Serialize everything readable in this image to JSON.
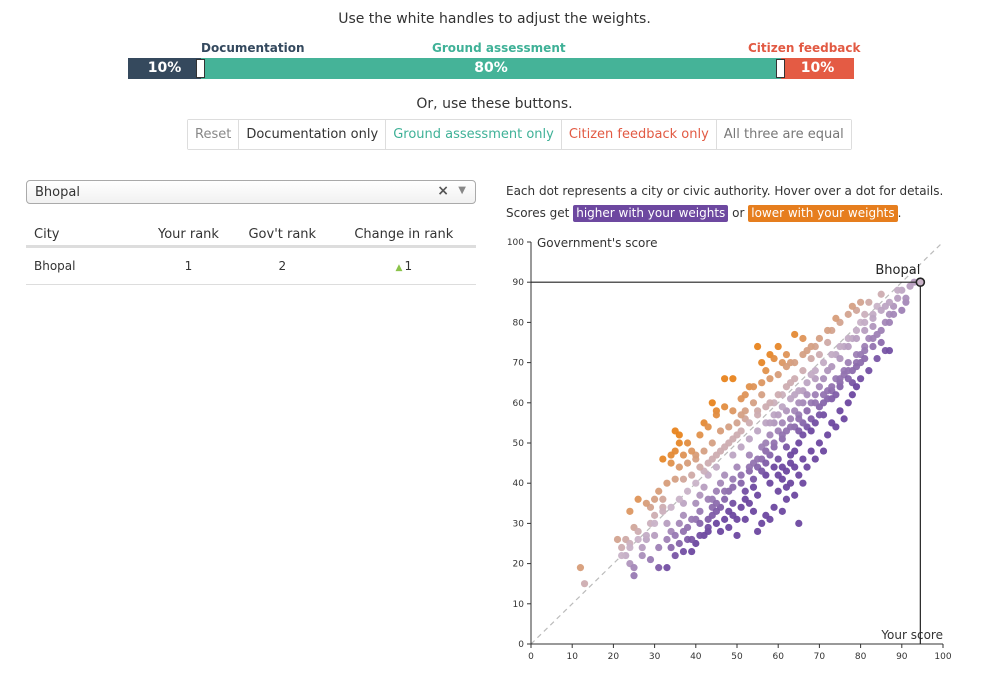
{
  "instructions": "Use the white handles to adjust the weights.",
  "weights": {
    "documentation": {
      "label": "Documentation",
      "percent": "10%",
      "value": 10,
      "color": "#35495d"
    },
    "ground": {
      "label": "Ground assessment",
      "percent": "80%",
      "value": 80,
      "color": "#45b398"
    },
    "citizen": {
      "label": "Citizen feedback",
      "percent": "10%",
      "value": 10,
      "color": "#e45b44"
    }
  },
  "or_text": "Or, use these buttons.",
  "buttons": {
    "reset": "Reset",
    "documentation_only": "Documentation only",
    "ground_only": "Ground assessment only",
    "citizen_only": "Citizen feedback only",
    "all_equal": "All three are equal"
  },
  "select": {
    "value": "Bhopal",
    "clear": "×",
    "caret": "▼"
  },
  "table": {
    "headers": {
      "city": "City",
      "your_rank": "Your rank",
      "gov_rank": "Gov't rank",
      "change": "Change in rank"
    },
    "rows": [
      {
        "city": "Bhopal",
        "your_rank": "1",
        "gov_rank": "2",
        "change": "1",
        "change_arrow": "▲"
      }
    ]
  },
  "explanation": {
    "line1": "Each dot represents a city or civic authority. Hover over a dot for details.",
    "line2_prefix": "Scores get",
    "higher": "higher with your weights",
    "or": "or",
    "lower": "lower with your weights",
    "end": "."
  },
  "chart_data": {
    "type": "scatter",
    "ylabel": "Government's score",
    "xlabel": "Your score",
    "xlim": [
      0,
      100
    ],
    "ylim": [
      0,
      100
    ],
    "xticks": [
      "0",
      "10",
      "20",
      "30",
      "40",
      "50",
      "60",
      "70",
      "80",
      "90",
      "100"
    ],
    "yticks": [
      "0",
      "10",
      "20",
      "30",
      "40",
      "50",
      "60",
      "70",
      "80",
      "90",
      "100"
    ],
    "highlight": {
      "name": "Bhopal",
      "x": 94.5,
      "y": 90
    },
    "colors": {
      "higher": "#6d48a0",
      "neutral": "#c9b3c8",
      "lower": "#e8841e"
    },
    "points": [
      [
        12,
        19
      ],
      [
        13,
        15
      ],
      [
        22,
        24
      ],
      [
        23,
        26
      ],
      [
        24,
        25
      ],
      [
        25,
        29
      ],
      [
        26,
        28
      ],
      [
        24,
        20
      ],
      [
        25,
        19
      ],
      [
        24,
        33
      ],
      [
        27,
        22
      ],
      [
        25,
        17
      ],
      [
        28,
        26
      ],
      [
        29,
        30
      ],
      [
        30,
        27
      ],
      [
        31,
        24
      ],
      [
        30,
        32
      ],
      [
        32,
        34
      ],
      [
        33,
        30
      ],
      [
        34,
        28
      ],
      [
        35,
        27
      ],
      [
        36,
        30
      ],
      [
        31,
        19
      ],
      [
        33,
        19
      ],
      [
        34,
        24
      ],
      [
        36,
        25
      ],
      [
        38,
        26
      ],
      [
        37,
        32
      ],
      [
        37,
        35
      ],
      [
        38,
        29
      ],
      [
        39,
        23
      ],
      [
        40,
        25
      ],
      [
        40,
        31
      ],
      [
        41,
        33
      ],
      [
        42,
        27
      ],
      [
        43,
        28
      ],
      [
        44,
        32
      ],
      [
        44,
        36
      ],
      [
        45,
        30
      ],
      [
        46,
        34
      ],
      [
        43,
        42
      ],
      [
        45,
        38
      ],
      [
        46,
        40
      ],
      [
        47,
        36
      ],
      [
        48,
        33
      ],
      [
        49,
        35
      ],
      [
        50,
        31
      ],
      [
        48,
        38
      ],
      [
        49,
        41
      ],
      [
        50,
        44
      ],
      [
        51,
        40
      ],
      [
        52,
        38
      ],
      [
        53,
        43
      ],
      [
        54,
        39
      ],
      [
        55,
        37
      ],
      [
        53,
        47
      ],
      [
        54,
        45
      ],
      [
        56,
        46
      ],
      [
        57,
        42
      ],
      [
        58,
        40
      ],
      [
        56,
        49
      ],
      [
        57,
        48
      ],
      [
        58,
        52
      ],
      [
        59,
        49
      ],
      [
        60,
        46
      ],
      [
        61,
        44
      ],
      [
        59,
        55
      ],
      [
        60,
        53
      ],
      [
        61,
        51
      ],
      [
        62,
        58
      ],
      [
        63,
        56
      ],
      [
        64,
        54
      ],
      [
        65,
        53
      ],
      [
        62,
        49
      ],
      [
        63,
        47
      ],
      [
        64,
        44
      ],
      [
        66,
        46
      ],
      [
        66,
        60
      ],
      [
        67,
        58
      ],
      [
        68,
        56
      ],
      [
        69,
        62
      ],
      [
        70,
        59
      ],
      [
        71,
        57
      ],
      [
        69,
        66
      ],
      [
        70,
        64
      ],
      [
        72,
        63
      ],
      [
        73,
        61
      ],
      [
        74,
        66
      ],
      [
        75,
        64
      ],
      [
        76,
        68
      ],
      [
        77,
        70
      ],
      [
        78,
        65
      ],
      [
        79,
        72
      ],
      [
        80,
        70
      ],
      [
        81,
        74
      ],
      [
        82,
        76
      ],
      [
        83,
        74
      ],
      [
        84,
        77
      ],
      [
        85,
        75
      ],
      [
        86,
        80
      ],
      [
        87,
        82
      ],
      [
        88,
        84
      ],
      [
        89,
        86
      ],
      [
        90,
        88
      ],
      [
        91,
        85
      ],
      [
        92,
        89
      ],
      [
        93,
        90
      ],
      [
        81,
        82
      ],
      [
        82,
        85
      ],
      [
        84,
        84
      ],
      [
        85,
        87
      ],
      [
        86,
        84
      ],
      [
        83,
        79
      ],
      [
        80,
        80
      ],
      [
        78,
        76
      ],
      [
        76,
        74
      ],
      [
        74,
        72
      ],
      [
        72,
        68
      ],
      [
        71,
        66
      ],
      [
        68,
        67
      ],
      [
        66,
        63
      ],
      [
        65,
        60
      ],
      [
        64,
        62
      ],
      [
        63,
        65
      ],
      [
        61,
        62
      ],
      [
        59,
        60
      ],
      [
        57,
        59
      ],
      [
        55,
        58
      ],
      [
        52,
        56
      ],
      [
        50,
        55
      ],
      [
        48,
        54
      ],
      [
        46,
        53
      ],
      [
        44,
        50
      ],
      [
        42,
        48
      ],
      [
        40,
        46
      ],
      [
        38,
        45
      ],
      [
        36,
        44
      ],
      [
        35,
        41
      ],
      [
        33,
        40
      ],
      [
        31,
        38
      ],
      [
        30,
        36
      ],
      [
        29,
        34
      ],
      [
        28,
        35
      ],
      [
        26,
        36
      ],
      [
        32,
        46
      ],
      [
        34,
        47
      ],
      [
        35,
        53
      ],
      [
        36,
        52
      ],
      [
        38,
        50
      ],
      [
        40,
        47
      ],
      [
        42,
        55
      ],
      [
        44,
        60
      ],
      [
        45,
        58
      ],
      [
        47,
        66
      ],
      [
        49,
        66
      ],
      [
        51,
        61
      ],
      [
        53,
        64
      ],
      [
        55,
        74
      ],
      [
        56,
        70
      ],
      [
        57,
        68
      ],
      [
        58,
        72
      ],
      [
        59,
        71
      ],
      [
        60,
        74
      ],
      [
        61,
        70
      ],
      [
        62,
        72
      ],
      [
        63,
        70
      ],
      [
        64,
        77
      ],
      [
        66,
        76
      ],
      [
        67,
        73
      ],
      [
        69,
        74
      ],
      [
        70,
        72
      ],
      [
        72,
        75
      ],
      [
        73,
        78
      ],
      [
        75,
        80
      ],
      [
        77,
        82
      ],
      [
        79,
        83
      ],
      [
        80,
        85
      ],
      [
        78,
        84
      ],
      [
        74,
        81
      ],
      [
        72,
        78
      ],
      [
        70,
        76
      ],
      [
        68,
        71
      ],
      [
        66,
        68
      ],
      [
        64,
        66
      ],
      [
        62,
        64
      ],
      [
        60,
        62
      ],
      [
        58,
        60
      ],
      [
        56,
        62
      ],
      [
        54,
        60
      ],
      [
        52,
        58
      ],
      [
        50,
        52
      ],
      [
        48,
        50
      ],
      [
        46,
        48
      ],
      [
        44,
        46
      ],
      [
        42,
        43
      ],
      [
        40,
        40
      ],
      [
        38,
        38
      ],
      [
        36,
        36
      ],
      [
        34,
        34
      ],
      [
        32,
        33
      ],
      [
        45,
        44
      ],
      [
        47,
        42
      ],
      [
        49,
        47
      ],
      [
        51,
        49
      ],
      [
        53,
        51
      ],
      [
        55,
        53
      ],
      [
        57,
        55
      ],
      [
        59,
        57
      ],
      [
        61,
        59
      ],
      [
        63,
        61
      ],
      [
        65,
        63
      ],
      [
        67,
        65
      ],
      [
        69,
        68
      ],
      [
        71,
        70
      ],
      [
        73,
        72
      ],
      [
        75,
        74
      ],
      [
        77,
        76
      ],
      [
        79,
        78
      ],
      [
        81,
        80
      ],
      [
        83,
        82
      ],
      [
        46,
        28
      ],
      [
        48,
        29
      ],
      [
        50,
        27
      ],
      [
        52,
        31
      ],
      [
        54,
        33
      ],
      [
        55,
        28
      ],
      [
        57,
        32
      ],
      [
        59,
        34
      ],
      [
        60,
        38
      ],
      [
        62,
        36
      ],
      [
        63,
        40
      ],
      [
        65,
        42
      ],
      [
        66,
        40
      ],
      [
        67,
        44
      ],
      [
        68,
        48
      ],
      [
        69,
        46
      ],
      [
        70,
        50
      ],
      [
        71,
        48
      ],
      [
        72,
        52
      ],
      [
        73,
        55
      ],
      [
        74,
        54
      ],
      [
        75,
        58
      ],
      [
        76,
        56
      ],
      [
        77,
        60
      ],
      [
        78,
        62
      ],
      [
        79,
        64
      ],
      [
        80,
        66
      ],
      [
        82,
        68
      ],
      [
        84,
        71
      ],
      [
        86,
        73
      ],
      [
        87,
        73
      ],
      [
        40,
        35
      ],
      [
        41,
        37
      ],
      [
        42,
        39
      ],
      [
        43,
        36
      ],
      [
        44,
        34
      ],
      [
        45,
        33
      ],
      [
        47,
        31
      ],
      [
        49,
        32
      ],
      [
        51,
        34
      ],
      [
        52,
        36
      ],
      [
        53,
        35
      ],
      [
        54,
        41
      ],
      [
        55,
        44
      ],
      [
        56,
        43
      ],
      [
        57,
        45
      ],
      [
        58,
        47
      ],
      [
        59,
        44
      ],
      [
        60,
        42
      ],
      [
        61,
        41
      ],
      [
        62,
        43
      ],
      [
        63,
        45
      ],
      [
        64,
        48
      ],
      [
        65,
        50
      ],
      [
        66,
        52
      ],
      [
        67,
        54
      ],
      [
        68,
        53
      ],
      [
        69,
        55
      ],
      [
        70,
        57
      ],
      [
        71,
        60
      ],
      [
        72,
        61
      ],
      [
        73,
        63
      ],
      [
        74,
        62
      ],
      [
        75,
        65
      ],
      [
        76,
        67
      ],
      [
        77,
        66
      ],
      [
        78,
        68
      ],
      [
        79,
        70
      ],
      [
        80,
        72
      ],
      [
        81,
        71
      ],
      [
        37,
        41
      ],
      [
        39,
        42
      ],
      [
        41,
        44
      ],
      [
        43,
        45
      ],
      [
        45,
        47
      ],
      [
        47,
        49
      ],
      [
        49,
        51
      ],
      [
        51,
        53
      ],
      [
        53,
        55
      ],
      [
        55,
        57
      ],
      [
        57,
        50
      ],
      [
        58,
        55
      ],
      [
        60,
        57
      ],
      [
        61,
        55
      ],
      [
        62,
        53
      ],
      [
        64,
        58
      ],
      [
        65,
        57
      ],
      [
        66,
        55
      ],
      [
        67,
        62
      ],
      [
        68,
        60
      ],
      [
        56,
        30
      ],
      [
        58,
        31
      ],
      [
        61,
        33
      ],
      [
        65,
        30
      ],
      [
        62,
        39
      ],
      [
        64,
        37
      ],
      [
        41,
        30
      ],
      [
        43,
        29
      ],
      [
        39,
        31
      ],
      [
        37,
        28
      ],
      [
        34,
        45
      ],
      [
        35,
        48
      ],
      [
        36,
        50
      ],
      [
        37,
        47
      ],
      [
        39,
        48
      ],
      [
        41,
        52
      ],
      [
        43,
        54
      ],
      [
        45,
        57
      ],
      [
        47,
        59
      ],
      [
        49,
        58
      ],
      [
        51,
        57
      ],
      [
        52,
        62
      ],
      [
        54,
        64
      ],
      [
        56,
        65
      ],
      [
        58,
        66
      ],
      [
        60,
        67
      ],
      [
        62,
        69
      ],
      [
        64,
        70
      ],
      [
        66,
        72
      ],
      [
        68,
        74
      ],
      [
        32,
        36
      ],
      [
        30,
        30
      ],
      [
        28,
        27
      ],
      [
        27,
        24
      ],
      [
        26,
        26
      ],
      [
        24,
        24
      ],
      [
        23,
        22
      ],
      [
        22,
        22
      ],
      [
        21,
        26
      ],
      [
        29,
        21
      ],
      [
        33,
        26
      ],
      [
        35,
        22
      ],
      [
        37,
        23
      ],
      [
        39,
        26
      ],
      [
        41,
        27
      ],
      [
        43,
        31
      ],
      [
        45,
        35
      ],
      [
        47,
        38
      ],
      [
        49,
        39
      ],
      [
        51,
        42
      ],
      [
        53,
        44
      ],
      [
        55,
        46
      ],
      [
        57,
        48
      ],
      [
        59,
        50
      ],
      [
        61,
        52
      ],
      [
        63,
        54
      ],
      [
        65,
        56
      ],
      [
        67,
        58
      ],
      [
        69,
        60
      ],
      [
        71,
        62
      ],
      [
        73,
        64
      ],
      [
        75,
        66
      ],
      [
        77,
        68
      ],
      [
        79,
        69
      ],
      [
        81,
        73
      ],
      [
        83,
        76
      ],
      [
        85,
        78
      ],
      [
        87,
        80
      ],
      [
        88,
        82
      ],
      [
        90,
        83
      ],
      [
        91,
        86
      ],
      [
        89,
        88
      ],
      [
        87,
        85
      ],
      [
        85,
        83
      ],
      [
        83,
        81
      ],
      [
        81,
        78
      ],
      [
        79,
        76
      ],
      [
        77,
        74
      ],
      [
        75,
        71
      ],
      [
        73,
        69
      ]
    ]
  }
}
